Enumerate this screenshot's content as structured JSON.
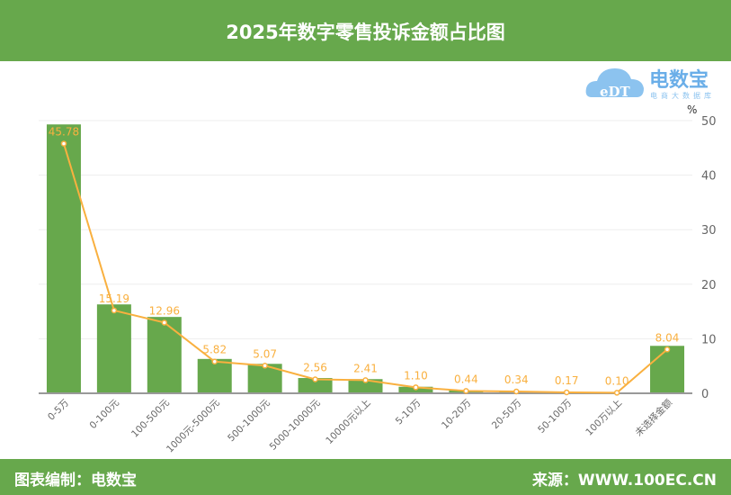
{
  "header": {
    "title": "2025年数字零售投诉金额占比图"
  },
  "footer": {
    "left": "图表编制：电数宝",
    "right": "来源：WWW.100EC.CN"
  },
  "logo": {
    "text": "电数宝",
    "subtitle": "电商大数据库",
    "mark": "eDT",
    "color": "#6aaee8"
  },
  "chart_data": {
    "type": "bar+line",
    "categories": [
      "0-5万",
      "0-100元",
      "100-500元",
      "1000元-5000元",
      "500-1000元",
      "5000-10000元",
      "10000元以上",
      "5-10万",
      "10-20万",
      "20-50万",
      "50-100万",
      "100万以上",
      "未选择金额"
    ],
    "series": [
      {
        "type": "bar",
        "color": "#67a84c",
        "values": [
          49.3,
          16.3,
          14.0,
          6.3,
          5.4,
          2.8,
          2.6,
          1.2,
          0.5,
          0.4,
          0.2,
          0.1,
          8.7
        ]
      },
      {
        "type": "line",
        "color": "#f9b03f",
        "values": [
          45.78,
          15.19,
          12.96,
          5.82,
          5.07,
          2.56,
          2.41,
          1.1,
          0.44,
          0.34,
          0.17,
          0.1,
          8.04
        ],
        "labels": [
          "45.78",
          "15.19",
          "12.96",
          "5.82",
          "5.07",
          "2.56",
          "2.41",
          "1.10",
          "0.44",
          "0.34",
          "0.17",
          "0.10",
          "8.04"
        ]
      }
    ],
    "yunit": "%",
    "yticks": [
      "0",
      "10",
      "20",
      "30",
      "40",
      "50"
    ],
    "ylim": [
      0,
      50
    ],
    "yaxis_position": "right",
    "grid": true
  }
}
